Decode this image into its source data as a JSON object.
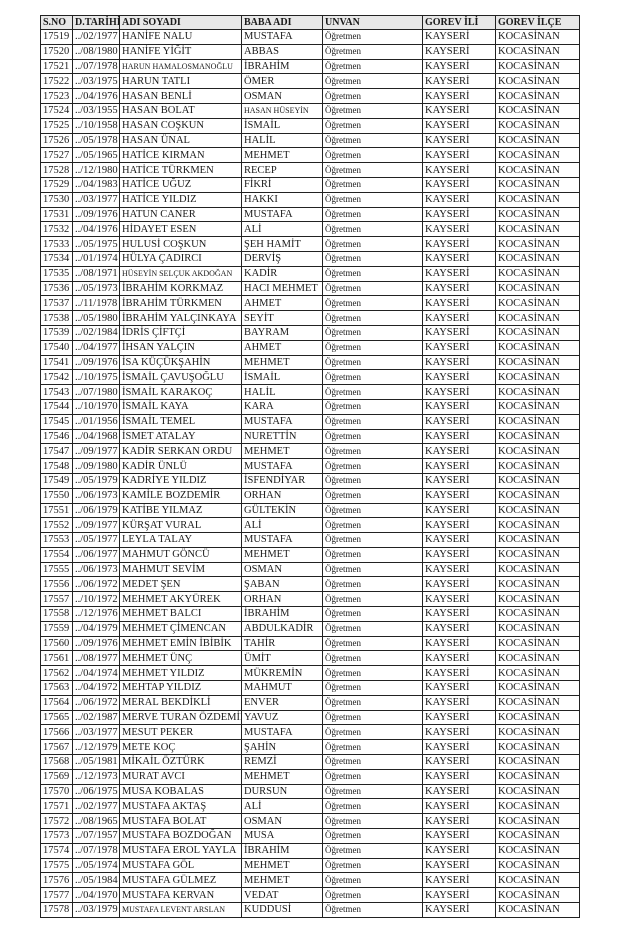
{
  "headers": [
    "S.NO",
    "D.TARİHİ",
    "ADI SOYADI",
    "BABA ADI",
    "UNVAN",
    "GOREV İLİ",
    "GOREV İLÇE"
  ],
  "rows": [
    [
      "17519",
      "../02/1977",
      "HANİFE NALU",
      "MUSTAFA",
      "Öğretmen",
      "KAYSERİ",
      "KOCASİNAN"
    ],
    [
      "17520",
      "../08/1980",
      "HANİFE YİĞİT",
      "ABBAS",
      "Öğretmen",
      "KAYSERİ",
      "KOCASİNAN"
    ],
    [
      "17521",
      "../07/1978",
      "HARUN HAMALOSMANOĞLU",
      "İBRAHİM",
      "Öğretmen",
      "KAYSERİ",
      "KOCASİNAN"
    ],
    [
      "17522",
      "../03/1975",
      "HARUN TATLI",
      "ÖMER",
      "Öğretmen",
      "KAYSERİ",
      "KOCASİNAN"
    ],
    [
      "17523",
      "../04/1976",
      "HASAN BENLİ",
      "OSMAN",
      "Öğretmen",
      "KAYSERİ",
      "KOCASİNAN"
    ],
    [
      "17524",
      "../03/1955",
      "HASAN BOLAT",
      "HASAN HÜSEYİN",
      "Öğretmen",
      "KAYSERİ",
      "KOCASİNAN"
    ],
    [
      "17525",
      "../10/1958",
      "HASAN COŞKUN",
      "İSMAİL",
      "Öğretmen",
      "KAYSERİ",
      "KOCASİNAN"
    ],
    [
      "17526",
      "../05/1978",
      "HASAN ÜNAL",
      "HALİL",
      "Öğretmen",
      "KAYSERİ",
      "KOCASİNAN"
    ],
    [
      "17527",
      "../05/1965",
      "HATİCE KIRMAN",
      "MEHMET",
      "Öğretmen",
      "KAYSERİ",
      "KOCASİNAN"
    ],
    [
      "17528",
      "../12/1980",
      "HATİCE TÜRKMEN",
      "RECEP",
      "Öğretmen",
      "KAYSERİ",
      "KOCASİNAN"
    ],
    [
      "17529",
      "../04/1983",
      "HATİCE UĞUZ",
      "FİKRİ",
      "Öğretmen",
      "KAYSERİ",
      "KOCASİNAN"
    ],
    [
      "17530",
      "../03/1977",
      "HATİCE YILDIZ",
      "HAKKI",
      "Öğretmen",
      "KAYSERİ",
      "KOCASİNAN"
    ],
    [
      "17531",
      "../09/1976",
      "HATUN CANER",
      "MUSTAFA",
      "Öğretmen",
      "KAYSERİ",
      "KOCASİNAN"
    ],
    [
      "17532",
      "../04/1976",
      "HİDAYET ESEN",
      "ALİ",
      "Öğretmen",
      "KAYSERİ",
      "KOCASİNAN"
    ],
    [
      "17533",
      "../05/1975",
      "HULUSİ COŞKUN",
      "ŞEH HAMİT",
      "Öğretmen",
      "KAYSERİ",
      "KOCASİNAN"
    ],
    [
      "17534",
      "../01/1974",
      "HÜLYA ÇADIRCI",
      "DERVİŞ",
      "Öğretmen",
      "KAYSERİ",
      "KOCASİNAN"
    ],
    [
      "17535",
      "../08/1971",
      "HÜSEYİN SELÇUK AKDOĞAN",
      "KADİR",
      "Öğretmen",
      "KAYSERİ",
      "KOCASİNAN"
    ],
    [
      "17536",
      "../05/1973",
      "İBRAHİM KORKMAZ",
      "HACI MEHMET",
      "Öğretmen",
      "KAYSERİ",
      "KOCASİNAN"
    ],
    [
      "17537",
      "../11/1978",
      "İBRAHİM TÜRKMEN",
      "AHMET",
      "Öğretmen",
      "KAYSERİ",
      "KOCASİNAN"
    ],
    [
      "17538",
      "../05/1980",
      "İBRAHİM YALÇINKAYA",
      "SEYİT",
      "Öğretmen",
      "KAYSERİ",
      "KOCASİNAN"
    ],
    [
      "17539",
      "../02/1984",
      "İDRİS ÇİFTÇİ",
      "BAYRAM",
      "Öğretmen",
      "KAYSERİ",
      "KOCASİNAN"
    ],
    [
      "17540",
      "../04/1977",
      "İHSAN YALÇIN",
      "AHMET",
      "Öğretmen",
      "KAYSERİ",
      "KOCASİNAN"
    ],
    [
      "17541",
      "../09/1976",
      "İSA KÜÇÜKŞAHİN",
      "MEHMET",
      "Öğretmen",
      "KAYSERİ",
      "KOCASİNAN"
    ],
    [
      "17542",
      "../10/1975",
      "İSMAİL ÇAVUŞOĞLU",
      "İSMAİL",
      "Öğretmen",
      "KAYSERİ",
      "KOCASİNAN"
    ],
    [
      "17543",
      "../07/1980",
      "İSMAİL KARAKOÇ",
      "HALİL",
      "Öğretmen",
      "KAYSERİ",
      "KOCASİNAN"
    ],
    [
      "17544",
      "../10/1970",
      "İSMAİL KAYA",
      "KARA",
      "Öğretmen",
      "KAYSERİ",
      "KOCASİNAN"
    ],
    [
      "17545",
      "../01/1956",
      "İSMAİL TEMEL",
      "MUSTAFA",
      "Öğretmen",
      "KAYSERİ",
      "KOCASİNAN"
    ],
    [
      "17546",
      "../04/1968",
      "İSMET ATALAY",
      "NURETTİN",
      "Öğretmen",
      "KAYSERİ",
      "KOCASİNAN"
    ],
    [
      "17547",
      "../09/1977",
      "KADİR SERKAN ORDU",
      "MEHMET",
      "Öğretmen",
      "KAYSERİ",
      "KOCASİNAN"
    ],
    [
      "17548",
      "../09/1980",
      "KADİR ÜNLÜ",
      "MUSTAFA",
      "Öğretmen",
      "KAYSERİ",
      "KOCASİNAN"
    ],
    [
      "17549",
      "../05/1979",
      "KADRİYE YILDIZ",
      "İSFENDİYAR",
      "Öğretmen",
      "KAYSERİ",
      "KOCASİNAN"
    ],
    [
      "17550",
      "../06/1973",
      "KAMİLE BOZDEMİR",
      "ORHAN",
      "Öğretmen",
      "KAYSERİ",
      "KOCASİNAN"
    ],
    [
      "17551",
      "../06/1979",
      "KATİBE YILMAZ",
      "GÜLTEKİN",
      "Öğretmen",
      "KAYSERİ",
      "KOCASİNAN"
    ],
    [
      "17552",
      "../09/1977",
      "KÜRŞAT VURAL",
      "ALİ",
      "Öğretmen",
      "KAYSERİ",
      "KOCASİNAN"
    ],
    [
      "17553",
      "../05/1977",
      "LEYLA TALAY",
      "MUSTAFA",
      "Öğretmen",
      "KAYSERİ",
      "KOCASİNAN"
    ],
    [
      "17554",
      "../06/1977",
      "MAHMUT GÖNCÜ",
      "MEHMET",
      "Öğretmen",
      "KAYSERİ",
      "KOCASİNAN"
    ],
    [
      "17555",
      "../06/1973",
      "MAHMUT SEVİM",
      "OSMAN",
      "Öğretmen",
      "KAYSERİ",
      "KOCASİNAN"
    ],
    [
      "17556",
      "../06/1972",
      "MEDET ŞEN",
      "ŞABAN",
      "Öğretmen",
      "KAYSERİ",
      "KOCASİNAN"
    ],
    [
      "17557",
      "../10/1972",
      "MEHMET AKYÜREK",
      "ORHAN",
      "Öğretmen",
      "KAYSERİ",
      "KOCASİNAN"
    ],
    [
      "17558",
      "../12/1976",
      "MEHMET BALCI",
      "İBRAHİM",
      "Öğretmen",
      "KAYSERİ",
      "KOCASİNAN"
    ],
    [
      "17559",
      "../04/1979",
      "MEHMET ÇİMENCAN",
      "ABDULKADİR",
      "Öğretmen",
      "KAYSERİ",
      "KOCASİNAN"
    ],
    [
      "17560",
      "../09/1976",
      "MEHMET EMİN İBİBİK",
      "TAHİR",
      "Öğretmen",
      "KAYSERİ",
      "KOCASİNAN"
    ],
    [
      "17561",
      "../08/1977",
      "MEHMET ÜNÇ",
      "ÜMİT",
      "Öğretmen",
      "KAYSERİ",
      "KOCASİNAN"
    ],
    [
      "17562",
      "../04/1974",
      "MEHMET YILDIZ",
      "MÜKREMİN",
      "Öğretmen",
      "KAYSERİ",
      "KOCASİNAN"
    ],
    [
      "17563",
      "../04/1972",
      "MEHTAP YILDIZ",
      "MAHMUT",
      "Öğretmen",
      "KAYSERİ",
      "KOCASİNAN"
    ],
    [
      "17564",
      "../06/1972",
      "MERAL BEKDİKLİ",
      "ENVER",
      "Öğretmen",
      "KAYSERİ",
      "KOCASİNAN"
    ],
    [
      "17565",
      "../02/1987",
      "MERVE TURAN ÖZDEMİR",
      "YAVUZ",
      "Öğretmen",
      "KAYSERİ",
      "KOCASİNAN"
    ],
    [
      "17566",
      "../03/1977",
      "MESUT PEKER",
      "MUSTAFA",
      "Öğretmen",
      "KAYSERİ",
      "KOCASİNAN"
    ],
    [
      "17567",
      "../12/1979",
      "METE KOÇ",
      "ŞAHİN",
      "Öğretmen",
      "KAYSERİ",
      "KOCASİNAN"
    ],
    [
      "17568",
      "../05/1981",
      "MİKAİL ÖZTÜRK",
      "REMZİ",
      "Öğretmen",
      "KAYSERİ",
      "KOCASİNAN"
    ],
    [
      "17569",
      "../12/1973",
      "MURAT AVCI",
      "MEHMET",
      "Öğretmen",
      "KAYSERİ",
      "KOCASİNAN"
    ],
    [
      "17570",
      "../06/1975",
      "MUSA KOBALAS",
      "DURSUN",
      "Öğretmen",
      "KAYSERİ",
      "KOCASİNAN"
    ],
    [
      "17571",
      "../02/1977",
      "MUSTAFA AKTAŞ",
      "ALİ",
      "Öğretmen",
      "KAYSERİ",
      "KOCASİNAN"
    ],
    [
      "17572",
      "../08/1965",
      "MUSTAFA BOLAT",
      "OSMAN",
      "Öğretmen",
      "KAYSERİ",
      "KOCASİNAN"
    ],
    [
      "17573",
      "../07/1957",
      "MUSTAFA BOZDOĞAN",
      "MUSA",
      "Öğretmen",
      "KAYSERİ",
      "KOCASİNAN"
    ],
    [
      "17574",
      "../07/1978",
      "MUSTAFA EROL YAYLA",
      "İBRAHİM",
      "Öğretmen",
      "KAYSERİ",
      "KOCASİNAN"
    ],
    [
      "17575",
      "../05/1974",
      "MUSTAFA GÖL",
      "MEHMET",
      "Öğretmen",
      "KAYSERİ",
      "KOCASİNAN"
    ],
    [
      "17576",
      "../05/1984",
      "MUSTAFA GÜLMEZ",
      "MEHMET",
      "Öğretmen",
      "KAYSERİ",
      "KOCASİNAN"
    ],
    [
      "17577",
      "../04/1970",
      "MUSTAFA KERVAN",
      "VEDAT",
      "Öğretmen",
      "KAYSERİ",
      "KOCASİNAN"
    ],
    [
      "17578",
      "../03/1979",
      "MUSTAFA LEVENT ARSLAN",
      "KUDDUSİ",
      "Öğretmen",
      "KAYSERİ",
      "KOCASİNAN"
    ]
  ]
}
